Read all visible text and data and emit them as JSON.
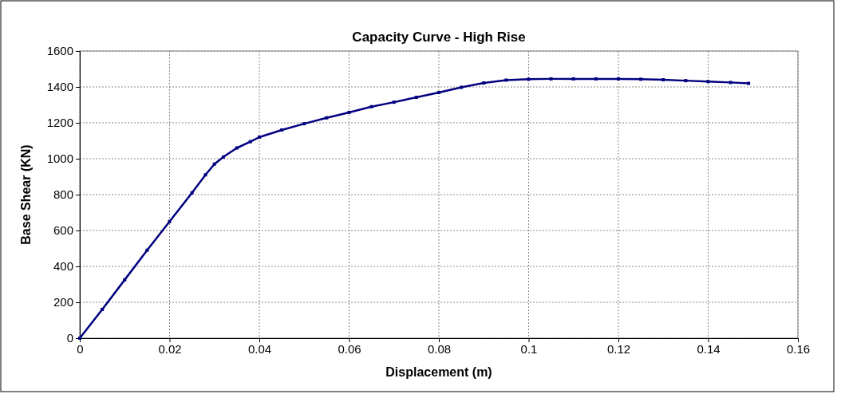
{
  "chart_data": {
    "type": "line",
    "title": "Capacity Curve - High Rise",
    "xlabel": "Displacement (m)",
    "ylabel": "Base Shear (KN)",
    "x": [
      0,
      0.005,
      0.01,
      0.015,
      0.02,
      0.025,
      0.028,
      0.03,
      0.032,
      0.035,
      0.038,
      0.04,
      0.045,
      0.05,
      0.055,
      0.06,
      0.065,
      0.07,
      0.075,
      0.08,
      0.085,
      0.09,
      0.095,
      0.1,
      0.105,
      0.11,
      0.115,
      0.12,
      0.125,
      0.13,
      0.135,
      0.14,
      0.145,
      0.149
    ],
    "series": [
      {
        "color": "#000080",
        "values": [
          0,
          160,
          325,
          490,
          650,
          810,
          910,
          970,
          1010,
          1060,
          1095,
          1120,
          1160,
          1195,
          1228,
          1258,
          1290,
          1315,
          1342,
          1369,
          1398,
          1422,
          1438,
          1443,
          1445,
          1445,
          1445,
          1445,
          1443,
          1440,
          1435,
          1430,
          1425,
          1420
        ]
      }
    ],
    "xlim": [
      0,
      0.16
    ],
    "xticks": [
      0,
      0.02,
      0.04,
      0.06,
      0.08,
      0.1,
      0.12,
      0.14,
      0.16
    ],
    "ylim": [
      0,
      1600
    ],
    "yticks": [
      0,
      200,
      400,
      600,
      800,
      1000,
      1200,
      1400,
      1600
    ],
    "grid": true,
    "marker": "square",
    "line_style": "solid"
  }
}
